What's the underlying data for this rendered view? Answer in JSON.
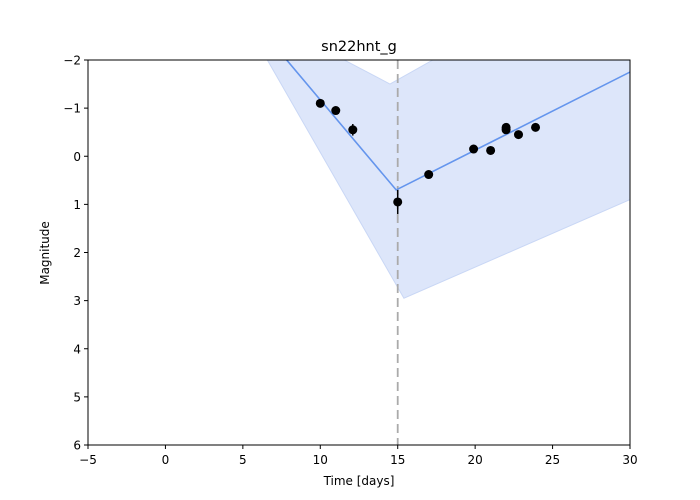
{
  "chart_data": {
    "type": "line",
    "title": "sn22hnt_g",
    "xlabel": "Time [days]",
    "ylabel": "Magnitude",
    "xlim": [
      -5,
      30
    ],
    "ylim": [
      6,
      -2
    ],
    "y_inverted": true,
    "grid": false,
    "xticks": [
      -5,
      0,
      5,
      10,
      15,
      20,
      25,
      30
    ],
    "yticks": [
      -2,
      -1,
      0,
      1,
      2,
      3,
      4,
      5,
      6
    ],
    "vline_x": 15,
    "colors": {
      "fit": "#6495ed",
      "band": "#dde6fa",
      "points": "#000000",
      "vline": "#aaaaaa"
    },
    "fit_line": {
      "x": [
        -5,
        14.9,
        30
      ],
      "y": [
        -6.9,
        0.7,
        -1.75
      ]
    },
    "band_upper": {
      "x": [
        -5,
        14.5,
        30
      ],
      "y": [
        -4.8,
        -1.5,
        -4.3
      ]
    },
    "band_lower": {
      "x": [
        -5,
        15.4,
        30
      ],
      "y": [
        -8.5,
        2.95,
        0.9
      ]
    },
    "series": [
      {
        "x": [
          10.0,
          11.0,
          12.1,
          15.0,
          17.0,
          19.9,
          21.0,
          22.0,
          22.0,
          22.8,
          23.9
        ],
        "y": [
          -1.1,
          -0.95,
          -0.55,
          0.95,
          0.38,
          -0.15,
          -0.12,
          -0.6,
          -0.55,
          -0.45,
          -0.6
        ],
        "yerr": [
          0.08,
          0.08,
          0.12,
          0.25,
          0.08,
          0.06,
          0.06,
          0.06,
          0.06,
          0.06,
          0.06
        ]
      }
    ]
  }
}
